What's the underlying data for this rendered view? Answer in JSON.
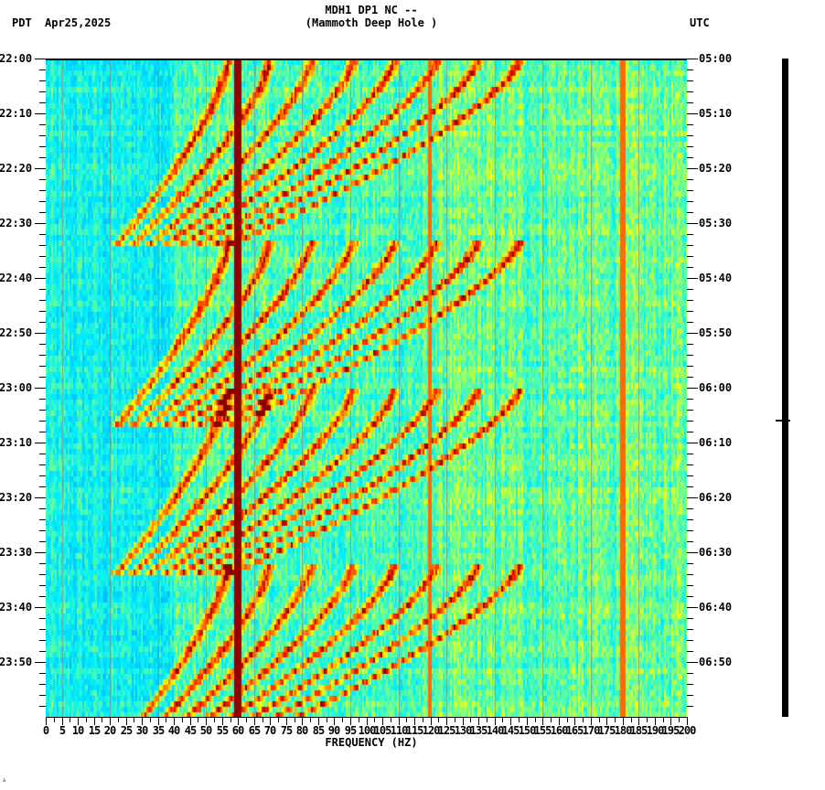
{
  "header": {
    "station_line": "MDH1 DP1 NC --",
    "station_name": "(Mammoth Deep Hole )",
    "left_timezone": "PDT",
    "date": "Apr25,2025",
    "right_timezone": "UTC"
  },
  "chart_data": {
    "type": "heatmap",
    "title": "MDH1 DP1 NC -- (Mammoth Deep Hole )",
    "subtitle": "Apr25,2025",
    "xlabel": "FREQUENCY (HZ)",
    "ylabel_left": "PDT",
    "ylabel_right": "UTC",
    "xlim": [
      0,
      200
    ],
    "x_ticks": [
      0,
      5,
      10,
      15,
      20,
      25,
      30,
      35,
      40,
      45,
      50,
      55,
      60,
      65,
      70,
      75,
      80,
      85,
      90,
      95,
      100,
      105,
      110,
      115,
      120,
      125,
      130,
      135,
      140,
      145,
      150,
      155,
      160,
      165,
      170,
      175,
      180,
      185,
      190,
      195,
      200
    ],
    "y_ticks_left": [
      "22:00",
      "22:10",
      "22:20",
      "22:30",
      "22:40",
      "22:50",
      "23:00",
      "23:10",
      "23:20",
      "23:30",
      "23:40",
      "23:50"
    ],
    "y_ticks_right": [
      "05:00",
      "05:10",
      "05:20",
      "05:30",
      "05:40",
      "05:50",
      "06:00",
      "06:10",
      "06:20",
      "06:30",
      "06:40",
      "06:50"
    ],
    "time_range_minutes": 120,
    "minor_tick_interval_minutes": 2,
    "colormap": [
      "#0033ff",
      "#0077ff",
      "#00bbff",
      "#00eeff",
      "#66ff99",
      "#ffff00",
      "#ff9900",
      "#ff2200",
      "#880000"
    ],
    "persistent_lines_hz": [
      {
        "freq": 60,
        "strength": "very strong",
        "color": "#880000"
      },
      {
        "freq": 120,
        "strength": "moderate",
        "color": "#cc4400"
      },
      {
        "freq": 180,
        "strength": "moderate",
        "color": "#aa2200"
      }
    ],
    "grid_lines_hz": [
      5,
      20,
      35,
      50,
      65,
      80,
      95,
      110,
      125,
      140,
      155,
      170,
      185
    ],
    "chirp_bands": {
      "description": "Repeating curved harmonic bands (tonal sweeps) recurring roughly every 30-35 minutes, rising in frequency from ~20-45 Hz up to ~60-120 Hz",
      "episodes_start_minutes": [
        0,
        33,
        60,
        92
      ],
      "episode_duration_minutes": 34
    },
    "background_level": "blue-cyan noise, stronger (cyan) above 120 Hz"
  },
  "seismogram": {
    "label": "trace",
    "event_marker_time": "06:06"
  },
  "footer": {
    "logo": "∴"
  }
}
